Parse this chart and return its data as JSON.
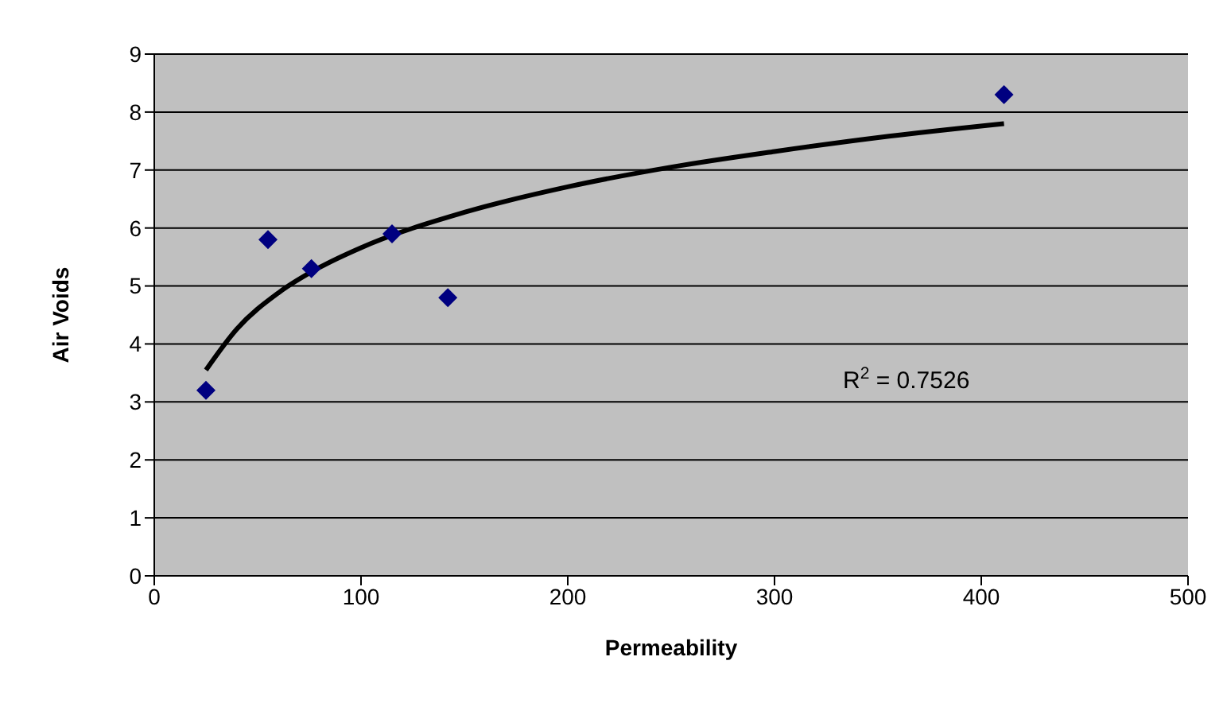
{
  "chart_data": {
    "type": "scatter",
    "xlabel": "Permeability",
    "ylabel": "Air Voids",
    "xlim": [
      0,
      500
    ],
    "xticks": [
      0,
      100,
      200,
      300,
      400,
      500
    ],
    "ylim": [
      0,
      9
    ],
    "yticks": [
      0,
      1,
      2,
      3,
      4,
      5,
      6,
      7,
      8,
      9
    ],
    "grid": "y",
    "legend": false,
    "marker": "diamond",
    "annotations": [
      "R$^{2}$ = 0.7526"
    ],
    "series": [
      {
        "color": "#000080",
        "x": [
          25,
          55,
          76,
          115,
          142,
          411
        ],
        "values": [
          3.2,
          5.8,
          5.3,
          5.9,
          4.8,
          8.3
        ]
      },
      {
        "type": "line",
        "color": "#000000",
        "marker": "none",
        "x": [
          25,
          40,
          60,
          80,
          100,
          150,
          200,
          250,
          300,
          350,
          411
        ],
        "values": [
          3.55,
          4.26,
          4.88,
          5.32,
          5.66,
          6.27,
          6.71,
          7.05,
          7.32,
          7.56,
          7.8
        ]
      }
    ]
  }
}
